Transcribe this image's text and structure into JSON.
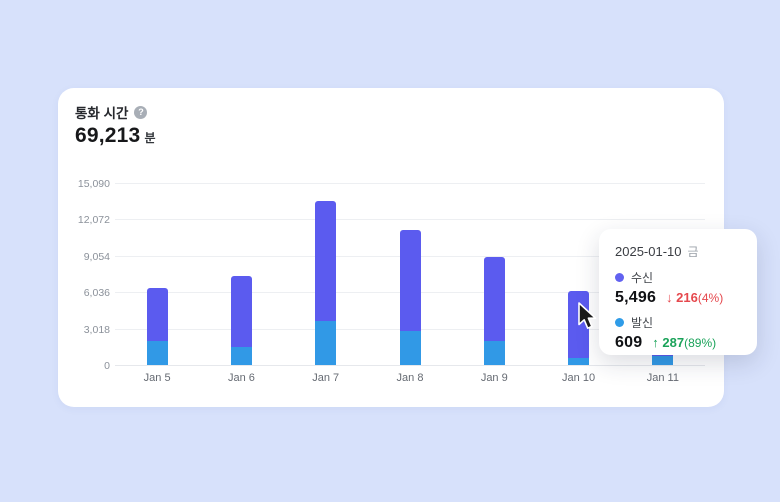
{
  "background_color": "#d7e1fb",
  "card": {
    "title": "통화 시간",
    "help_icon": "?",
    "stat_value": "69,213",
    "stat_unit": "분"
  },
  "chart_data": {
    "type": "bar",
    "stacked": true,
    "categories": [
      "Jan 5",
      "Jan 6",
      "Jan 7",
      "Jan 8",
      "Jan 9",
      "Jan 10",
      "Jan 11"
    ],
    "series": [
      {
        "name": "수신",
        "color": "#5b5bef",
        "values": [
          4370,
          5870,
          9970,
          8370,
          6920,
          5496,
          3150
        ]
      },
      {
        "name": "발신",
        "color": "#3199e6",
        "values": [
          2000,
          1520,
          3660,
          2820,
          2000,
          609,
          750
        ]
      }
    ],
    "title": "통화 시간",
    "xlabel": "",
    "ylabel": "",
    "ylim": [
      0,
      15090
    ],
    "ytick_values": [
      0,
      3018,
      6036,
      9054,
      12072,
      15090
    ],
    "ytick_labels": [
      "0",
      "3,018",
      "6,036",
      "9,054",
      "12,072",
      "15,090"
    ],
    "grid": true,
    "legend_position": "none"
  },
  "tooltip": {
    "date": "2025-01-10",
    "day": "금",
    "rows": [
      {
        "label": "수신",
        "dot_color": "#6262f0",
        "value": "5,496",
        "arrow": "↓",
        "delta": "216",
        "delta_pct": "(4%)",
        "color": "#e5484d"
      },
      {
        "label": "발신",
        "dot_color": "#2f9ce8",
        "value": "609",
        "arrow": "↑",
        "delta": "287",
        "delta_pct": "(89%)",
        "color": "#1ba35a"
      }
    ]
  }
}
